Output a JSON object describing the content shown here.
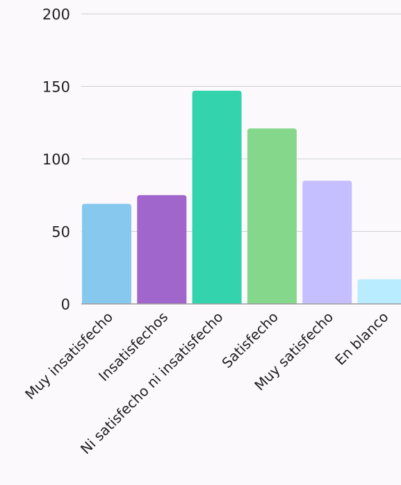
{
  "chart_data": {
    "type": "bar",
    "title": "",
    "xlabel": "",
    "ylabel": "",
    "categories": [
      "Muy insatisfecho",
      "Insatisfechos",
      "Ni satisfecho ni insatisfecho",
      "Satisfecho",
      "Muy satisfecho",
      "En blanco"
    ],
    "values": [
      69,
      75,
      147,
      121,
      85,
      17
    ],
    "colors": [
      "#87c8ef",
      "#a066cb",
      "#32d3ad",
      "#85d78c",
      "#c6bfff",
      "#b8ecfe"
    ],
    "ylim": [
      0,
      200
    ],
    "yticks": [
      0,
      50,
      100,
      150,
      200
    ],
    "ytick_labels": [
      "0",
      "50",
      "100",
      "150",
      "200"
    ],
    "grid": true,
    "legend": "none"
  }
}
